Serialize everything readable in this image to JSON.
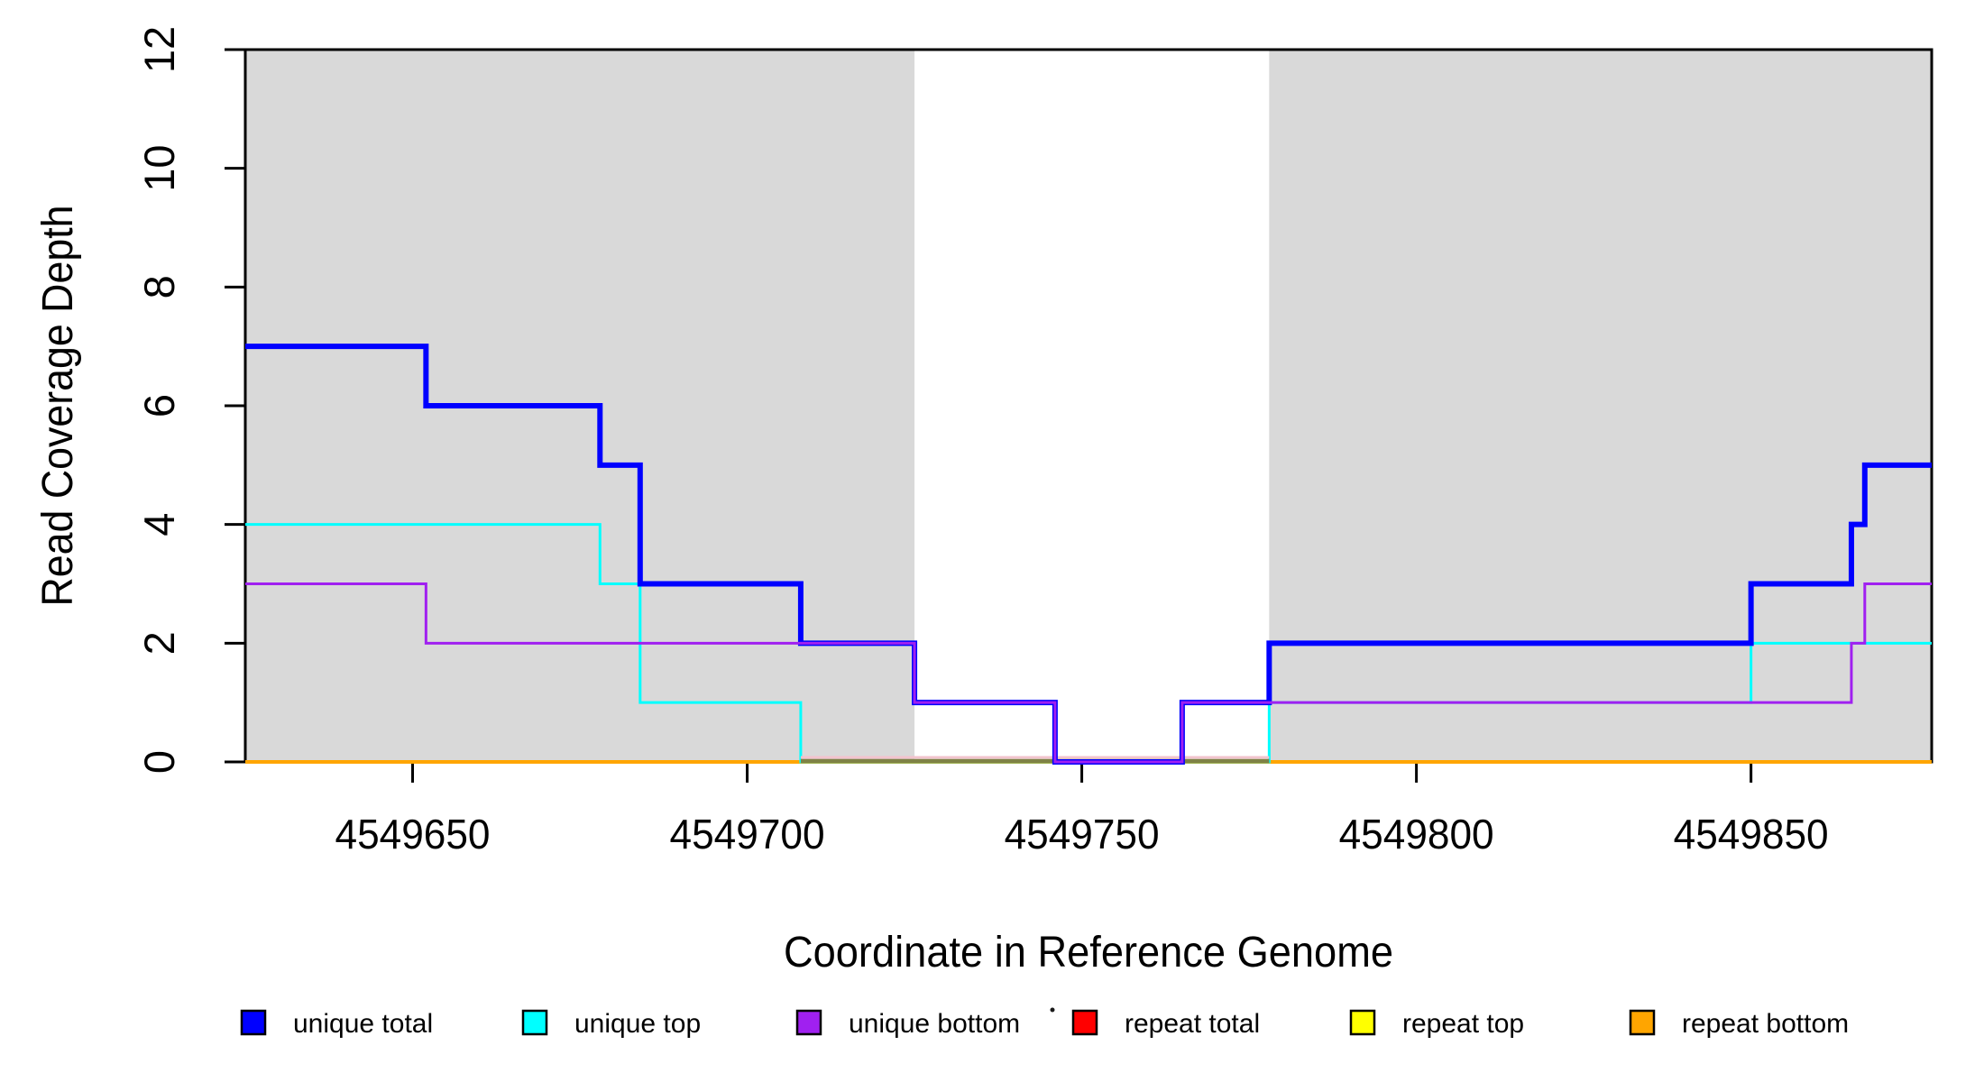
{
  "chart_data": {
    "type": "line",
    "subtype": "step",
    "title": "",
    "xlabel": "Coordinate in Reference Genome",
    "ylabel": "Read Coverage Depth",
    "xlim": [
      4549625,
      4549877
    ],
    "ylim": [
      0,
      12
    ],
    "grid": false,
    "legend_position": "bottom",
    "x_ticks": {
      "values": [
        4549650,
        4549700,
        4549750,
        4549800,
        4549850
      ],
      "labels": [
        "4549650",
        "4549700",
        "4549750",
        "4549800",
        "4549850"
      ]
    },
    "y_ticks": {
      "values": [
        0,
        2,
        4,
        6,
        8,
        10,
        12
      ],
      "labels": [
        "0",
        "2",
        "4",
        "6",
        "8",
        "10",
        "12"
      ]
    },
    "colors": {
      "axis": "#000000",
      "shading": "#d9d9d9",
      "background": "#ffffff"
    },
    "shaded_regions": [
      {
        "name": "left-gray-region",
        "x0": 4549625,
        "x1": 4549725
      },
      {
        "name": "right-gray-region",
        "x0": 4549778,
        "x1": 4549877
      }
    ],
    "series": [
      {
        "name": "unique total",
        "color": "#0000ff",
        "width": 6,
        "steps": [
          [
            4549625,
            7
          ],
          [
            4549652,
            6
          ],
          [
            4549678,
            5
          ],
          [
            4549684,
            3
          ],
          [
            4549708,
            2
          ],
          [
            4549725,
            1
          ],
          [
            4549746,
            0
          ],
          [
            4549765,
            1
          ],
          [
            4549778,
            2
          ],
          [
            4549850,
            3
          ],
          [
            4549865,
            4
          ],
          [
            4549867,
            5
          ],
          [
            4549877,
            5
          ]
        ]
      },
      {
        "name": "unique top",
        "color": "#00ffff",
        "width": 3,
        "steps": [
          [
            4549625,
            4
          ],
          [
            4549678,
            3
          ],
          [
            4549684,
            1
          ],
          [
            4549708,
            0
          ],
          [
            4549778,
            1
          ],
          [
            4549850,
            2
          ],
          [
            4549877,
            2
          ]
        ]
      },
      {
        "name": "unique bottom",
        "color": "#a020f0",
        "width": 3,
        "steps": [
          [
            4549625,
            3
          ],
          [
            4549652,
            2
          ],
          [
            4549725,
            1
          ],
          [
            4549746,
            0
          ],
          [
            4549765,
            1
          ],
          [
            4549865,
            2
          ],
          [
            4549867,
            3
          ],
          [
            4549877,
            3
          ]
        ]
      },
      {
        "name": "repeat total",
        "color": "#ff0000",
        "width": 3,
        "steps": [
          [
            4549625,
            0
          ],
          [
            4549877,
            0
          ]
        ]
      },
      {
        "name": "repeat top",
        "color": "#ffff00",
        "width": 3,
        "steps": [
          [
            4549625,
            0
          ],
          [
            4549877,
            0
          ]
        ]
      },
      {
        "name": "repeat bottom",
        "color": "#ffa500",
        "width": 4,
        "steps": [
          [
            4549625,
            0
          ],
          [
            4549877,
            0
          ]
        ]
      }
    ],
    "baseline_overlays": [
      {
        "name": "pink-baseline-artifact",
        "x0": 4549708,
        "x1": 4549778,
        "dy": -5,
        "color": "#f2c4cd",
        "width": 3
      },
      {
        "name": "olive-baseline-artifact",
        "x0": 4549708,
        "x1": 4549778,
        "dy": -1,
        "color": "#7f8246",
        "width": 4.5
      }
    ],
    "draw_order": [
      "repeat total",
      "repeat top",
      "repeat bottom",
      "unique top",
      "baseline_overlays",
      "unique total",
      "unique bottom"
    ],
    "legend_items": [
      {
        "label": "unique total",
        "color": "#0000ff"
      },
      {
        "label": "unique top",
        "color": "#00ffff"
      },
      {
        "label": "unique bottom",
        "color": "#a020f0"
      },
      {
        "label": "repeat total",
        "color": "#ff0000"
      },
      {
        "label": "repeat top",
        "color": "#ffff00"
      },
      {
        "label": "repeat bottom",
        "color": "#ffa500"
      }
    ],
    "legend_dot_artifact": {
      "present": true,
      "color": "#1a1a1a"
    }
  }
}
